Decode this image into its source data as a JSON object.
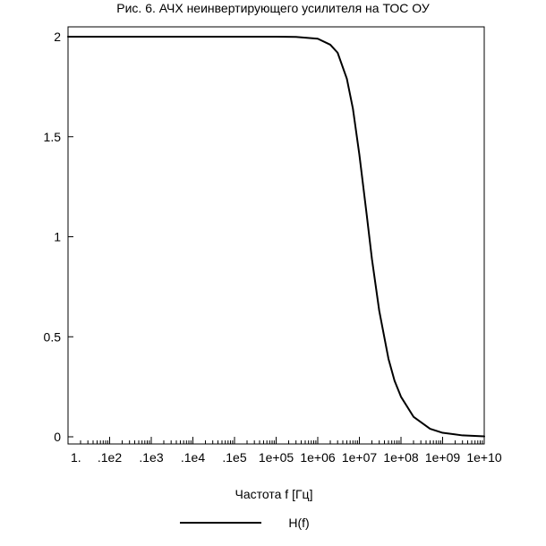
{
  "chart_data": {
    "type": "line",
    "title": "Рис. 6.   АЧХ неинвертирующего усилителя на ТОС ОУ",
    "xlabel": "Частота f [Гц]",
    "ylabel": "",
    "x_scale": "log",
    "xlim": [
      1,
      10000000000
    ],
    "ylim": [
      0,
      2
    ],
    "grid": false,
    "legend_position": "bottom-center",
    "x_ticks": [
      1,
      10,
      100,
      1000,
      10000,
      100000,
      1000000,
      10000000,
      100000000,
      1000000000,
      10000000000
    ],
    "x_tick_labels": [
      "1.",
      ".1e2",
      ".1e3",
      ".1e4",
      ".1e5",
      "1e+05",
      "1e+06",
      "1e+07",
      "1e+08",
      "1e+09",
      "1e+10"
    ],
    "y_ticks": [
      0,
      0.5,
      1,
      1.5,
      2
    ],
    "y_tick_labels": [
      "0",
      "0.5",
      "1",
      "1.5",
      "2"
    ],
    "series": [
      {
        "name": "H(f)",
        "color": "#000000",
        "points": [
          [
            1,
            2.0
          ],
          [
            10,
            2.0
          ],
          [
            100,
            2.0
          ],
          [
            1000,
            2.0
          ],
          [
            10000,
            2.0
          ],
          [
            100000,
            2.0
          ],
          [
            300000,
            1.999
          ],
          [
            1000000,
            1.99
          ],
          [
            2000000,
            1.96
          ],
          [
            3000000,
            1.92
          ],
          [
            5000000,
            1.79
          ],
          [
            7000000,
            1.64
          ],
          [
            10000000,
            1.41
          ],
          [
            15000000,
            1.11
          ],
          [
            20000000,
            0.89
          ],
          [
            30000000,
            0.63
          ],
          [
            50000000,
            0.39
          ],
          [
            70000000,
            0.28
          ],
          [
            100000000,
            0.2
          ],
          [
            200000000,
            0.1
          ],
          [
            500000000,
            0.04
          ],
          [
            1000000000,
            0.02
          ],
          [
            3000000000,
            0.007
          ],
          [
            10000000000,
            0.002
          ]
        ]
      }
    ]
  }
}
